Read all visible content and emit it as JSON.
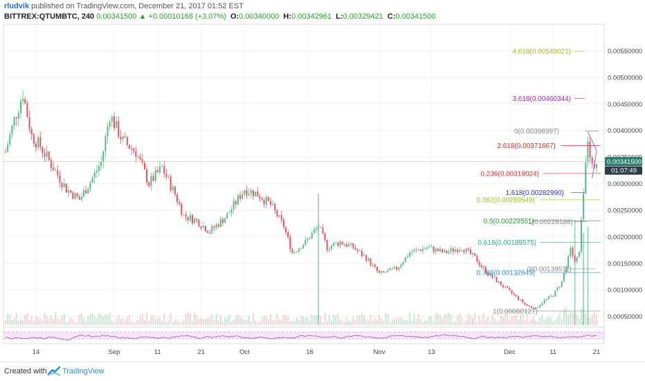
{
  "header": {
    "author": "rludvik",
    "published": "published on TradingView.com, December 21, 2017 01:52 EST",
    "symbol": "BITTREX:QTUMBTC, 240",
    "last": "0.00341500",
    "change_arrow": "▲",
    "change": "+0.00010168 (+3.07%)",
    "o_label": "O:",
    "o_value": "0.00340000",
    "h_label": "H:",
    "h_value": "0.00342961",
    "l_label": "L:",
    "l_value": "0.00329421",
    "c_label": "C:",
    "c_value": "0.00341500"
  },
  "footer": {
    "created_with": "Created with",
    "brand": "TradingView"
  },
  "colors": {
    "up": "#53b987",
    "down": "#eb4d5c",
    "price_badge": "#2a7d6a",
    "rsi": "#a14fb3",
    "rsi_band": "#efd7f4",
    "volume": "#b7dcc8",
    "volume_ma": "#cfe4f1"
  },
  "chart_data": {
    "type": "candlestick",
    "title": "",
    "x_ticks": [
      "14",
      "Sep",
      "11",
      "21",
      "Oct",
      "16",
      "Nov",
      "13",
      "Dec",
      "11",
      "21"
    ],
    "y_ticks": [
      "0.00550000",
      "0.00500000",
      "0.00450000",
      "0.00400000",
      "0.00350000",
      "0.00300000",
      "0.00250000",
      "0.00200000",
      "0.00150000",
      "0.00100000",
      "0.00050000"
    ],
    "y_tick_values": [
      0.0055,
      0.005,
      0.0045,
      0.004,
      0.0035,
      0.003,
      0.0025,
      0.002,
      0.0015,
      0.001,
      0.0005
    ],
    "ylim": [
      0.0003,
      0.006
    ],
    "current_price_label": "0.00341500",
    "countdown_label": "01:07:49",
    "current_price": 0.003415,
    "price_path": [
      {
        "x": "Aug 07",
        "y": 0.0036
      },
      {
        "x": "Aug 09",
        "y": 0.0042
      },
      {
        "x": "Aug 11",
        "y": 0.0047
      },
      {
        "x": "Aug 13",
        "y": 0.0039
      },
      {
        "x": "Aug 15",
        "y": 0.0037
      },
      {
        "x": "Aug 18",
        "y": 0.0033
      },
      {
        "x": "Aug 21",
        "y": 0.0029
      },
      {
        "x": "Aug 24",
        "y": 0.0027
      },
      {
        "x": "Aug 27",
        "y": 0.0031
      },
      {
        "x": "Aug 29",
        "y": 0.0034
      },
      {
        "x": "Aug 31",
        "y": 0.0043
      },
      {
        "x": "Sep 03",
        "y": 0.0038
      },
      {
        "x": "Sep 06",
        "y": 0.0036
      },
      {
        "x": "Sep 09",
        "y": 0.003
      },
      {
        "x": "Sep 12",
        "y": 0.0033
      },
      {
        "x": "Sep 15",
        "y": 0.0028
      },
      {
        "x": "Sep 17",
        "y": 0.0024
      },
      {
        "x": "Sep 20",
        "y": 0.0023
      },
      {
        "x": "Sep 23",
        "y": 0.0021
      },
      {
        "x": "Sep 27",
        "y": 0.0024
      },
      {
        "x": "Oct 01",
        "y": 0.0029
      },
      {
        "x": "Oct 04",
        "y": 0.0028
      },
      {
        "x": "Oct 07",
        "y": 0.0026
      },
      {
        "x": "Oct 10",
        "y": 0.0022
      },
      {
        "x": "Oct 12",
        "y": 0.0017
      },
      {
        "x": "Oct 15",
        "y": 0.0019
      },
      {
        "x": "Oct 18",
        "y": 0.0022
      },
      {
        "x": "Oct 20",
        "y": 0.0018
      },
      {
        "x": "Oct 23",
        "y": 0.0019
      },
      {
        "x": "Oct 26",
        "y": 0.0018
      },
      {
        "x": "Oct 29",
        "y": 0.0016
      },
      {
        "x": "Nov 01",
        "y": 0.0013
      },
      {
        "x": "Nov 05",
        "y": 0.0014
      },
      {
        "x": "Nov 08",
        "y": 0.0017
      },
      {
        "x": "Nov 12",
        "y": 0.0018
      },
      {
        "x": "Nov 16",
        "y": 0.0017
      },
      {
        "x": "Nov 20",
        "y": 0.0018
      },
      {
        "x": "Nov 23",
        "y": 0.0016
      },
      {
        "x": "Nov 26",
        "y": 0.0013
      },
      {
        "x": "Nov 29",
        "y": 0.0011
      },
      {
        "x": "Dec 02",
        "y": 0.0009
      },
      {
        "x": "Dec 05",
        "y": 0.0007
      },
      {
        "x": "Dec 07",
        "y": 0.00065
      },
      {
        "x": "Dec 09",
        "y": 0.0008
      },
      {
        "x": "Dec 11",
        "y": 0.0009
      },
      {
        "x": "Dec 13",
        "y": 0.00115
      },
      {
        "x": "Dec 15",
        "y": 0.0018
      },
      {
        "x": "Dec 16",
        "y": 0.0015
      },
      {
        "x": "Dec 17",
        "y": 0.0017
      },
      {
        "x": "Dec 18",
        "y": 0.0028
      },
      {
        "x": "Dec 19",
        "y": 0.0039
      },
      {
        "x": "Dec 20",
        "y": 0.0033
      },
      {
        "x": "Dec 21",
        "y": 0.003415
      }
    ],
    "fib_levels": [
      {
        "label": "4.618(0.00549021)",
        "value": 0.00549021,
        "color": "#9cbf1f"
      },
      {
        "label": "3.618(0.00460344)",
        "value": 0.00460344,
        "color": "#a020b0"
      },
      {
        "label": "0(0.00398997)",
        "value": 0.00398997,
        "color": "#888888"
      },
      {
        "label": "2.618(0.00371667)",
        "value": 0.00371667,
        "color": "#d42a2a"
      },
      {
        "label": "0.236(0.00319024)",
        "value": 0.00319024,
        "color": "#d42a2a"
      },
      {
        "label": "1.618(0.00282990)",
        "value": 0.0028299,
        "color": "#2a36b8"
      },
      {
        "label": "0.382(0.00269549)",
        "value": 0.00269549,
        "color": "#9cbf1f"
      },
      {
        "label": "0.5(0.00229551)",
        "value": 0.00229551,
        "color": "#2a9d2a"
      },
      {
        "label": "1(0.00228188)",
        "value": 0.00228188,
        "color": "#888888"
      },
      {
        "label": "0.618(0.00189575)",
        "value": 0.00189575,
        "color": "#2aa88a"
      },
      {
        "label": "0(0.00139511)",
        "value": 0.00139511,
        "color": "#888888"
      },
      {
        "label": "0.786(0.00132645)",
        "value": 0.00132645,
        "color": "#2a8bd6"
      },
      {
        "label": "1(0.00060127)",
        "value": 0.00060127,
        "color": "#888888"
      }
    ],
    "volume_spikes": [
      {
        "x": "Oct 18",
        "v": 1.0
      },
      {
        "x": "Dec 16",
        "v": 0.8
      },
      {
        "x": "Dec 18",
        "v": 0.7
      },
      {
        "x": "Dec 19",
        "v": 0.75
      }
    ],
    "rsi_range": [
      20,
      80
    ],
    "grid": true
  }
}
